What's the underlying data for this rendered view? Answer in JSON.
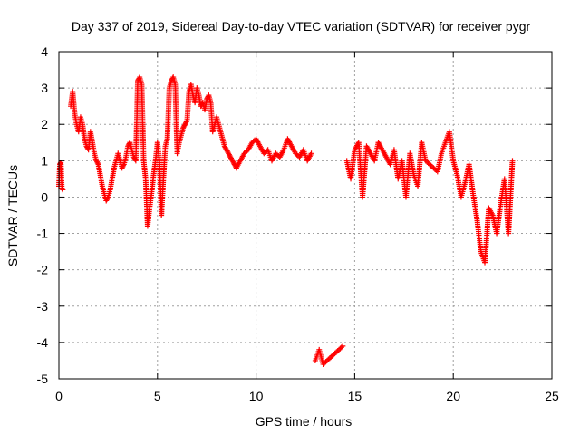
{
  "chart_data": {
    "type": "scatter",
    "title": "Day 337 of 2019, Sidereal Day-to-day VTEC variation (SDTVAR) for receiver pygr",
    "xlabel": "GPS time / hours",
    "ylabel": "SDTVAR / TECUs",
    "xlim": [
      0,
      25
    ],
    "ylim": [
      -5,
      4
    ],
    "xticks": [
      "0",
      "5",
      "10",
      "15",
      "20",
      "25"
    ],
    "yticks": [
      "4",
      "3",
      "2",
      "1",
      "0",
      "-1",
      "-2",
      "-3",
      "-4",
      "-5"
    ],
    "grid": true,
    "marker": "plus",
    "color": "#ff0000",
    "series": [
      {
        "name": "SDTVAR",
        "x": [
          0.0,
          0.05,
          0.1,
          0.15,
          0.2,
          0.6,
          0.7,
          0.8,
          0.9,
          1.0,
          1.1,
          1.2,
          1.3,
          1.4,
          1.5,
          1.6,
          1.7,
          1.8,
          1.9,
          2.0,
          2.1,
          2.2,
          2.3,
          2.4,
          2.5,
          2.6,
          2.7,
          2.8,
          2.9,
          3.0,
          3.1,
          3.2,
          3.3,
          3.4,
          3.5,
          3.6,
          3.7,
          3.8,
          3.9,
          4.0,
          4.1,
          4.2,
          4.3,
          4.4,
          4.5,
          4.6,
          4.7,
          4.8,
          4.9,
          5.0,
          5.1,
          5.2,
          5.3,
          5.4,
          5.5,
          5.6,
          5.7,
          5.8,
          5.9,
          6.0,
          6.1,
          6.2,
          6.3,
          6.4,
          6.5,
          6.6,
          6.7,
          6.8,
          6.9,
          7.0,
          7.1,
          7.2,
          7.3,
          7.4,
          7.5,
          7.6,
          7.7,
          7.8,
          7.9,
          8.0,
          8.1,
          8.2,
          8.3,
          8.4,
          8.5,
          8.6,
          8.7,
          8.8,
          8.9,
          9.0,
          9.2,
          9.4,
          9.6,
          9.8,
          10.0,
          10.2,
          10.4,
          10.6,
          10.8,
          11.0,
          11.2,
          11.4,
          11.6,
          11.8,
          12.0,
          12.2,
          12.4,
          12.6,
          12.8,
          13.0,
          13.2,
          13.4,
          13.6,
          13.8,
          14.0,
          14.2,
          14.4,
          14.6,
          14.8,
          15.0,
          15.2,
          15.4,
          15.6,
          15.8,
          16.0,
          16.2,
          16.4,
          16.6,
          16.8,
          17.0,
          17.2,
          17.4,
          17.6,
          17.8,
          18.0,
          18.2,
          18.4,
          18.6,
          18.8,
          19.0,
          19.2,
          19.4,
          19.6,
          19.8,
          20.0,
          20.2,
          20.4,
          20.6,
          20.8,
          21.0,
          21.2,
          21.4,
          21.6,
          21.8,
          22.0,
          22.2,
          22.4,
          22.6,
          22.8,
          23.0
        ],
        "y": [
          0.3,
          0.9,
          0.95,
          0.25,
          0.2,
          2.5,
          2.9,
          2.3,
          2.0,
          1.8,
          2.2,
          2.0,
          1.6,
          1.4,
          1.3,
          1.8,
          1.5,
          1.2,
          1.0,
          0.9,
          0.6,
          0.3,
          0.1,
          -0.1,
          0.0,
          0.2,
          0.5,
          0.8,
          1.0,
          1.2,
          1.0,
          0.8,
          0.9,
          1.1,
          1.4,
          1.5,
          1.3,
          1.1,
          1.0,
          3.2,
          3.3,
          3.1,
          1.0,
          0.5,
          -0.8,
          -0.3,
          0.1,
          0.6,
          1.0,
          1.5,
          1.0,
          -0.5,
          0.5,
          1.4,
          1.6,
          3.0,
          3.2,
          3.3,
          3.1,
          1.2,
          1.5,
          1.7,
          1.9,
          2.0,
          2.1,
          2.9,
          3.1,
          2.8,
          2.6,
          3.0,
          2.8,
          2.5,
          2.6,
          2.4,
          2.7,
          2.8,
          2.6,
          1.8,
          2.0,
          2.2,
          2.0,
          1.8,
          1.6,
          1.4,
          1.3,
          1.2,
          1.1,
          1.0,
          0.9,
          0.8,
          1.0,
          1.2,
          1.3,
          1.5,
          1.6,
          1.4,
          1.2,
          1.3,
          1.0,
          1.2,
          1.1,
          1.3,
          1.6,
          1.4,
          1.2,
          1.1,
          1.3,
          1.0,
          1.2,
          -4.5,
          -4.2,
          -4.6,
          -4.5,
          -4.4,
          -4.3,
          -4.2,
          -4.1,
          1.0,
          0.5,
          1.3,
          1.5,
          0.0,
          1.4,
          1.2,
          1.0,
          1.5,
          1.3,
          1.1,
          0.9,
          1.3,
          0.5,
          1.0,
          0.0,
          1.2,
          0.6,
          0.3,
          1.5,
          1.0,
          0.9,
          0.8,
          0.7,
          1.2,
          1.5,
          1.8,
          1.0,
          0.6,
          0.0,
          0.4,
          0.9,
          0.1,
          -0.6,
          -1.5,
          -1.8,
          -0.3,
          -0.5,
          -1.0,
          -0.2,
          0.5,
          -1.0,
          1.0
        ]
      }
    ]
  }
}
